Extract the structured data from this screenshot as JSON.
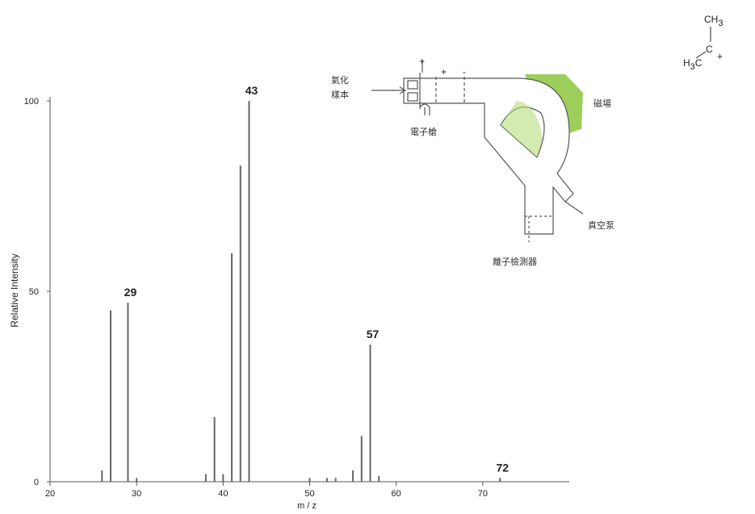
{
  "chart_data": {
    "type": "bar",
    "xlabel": "m / z",
    "ylabel": "Relative Intensity",
    "x": [
      26,
      27,
      29,
      30,
      38,
      39,
      40,
      41,
      42,
      43,
      50,
      52,
      53,
      55,
      56,
      57,
      58,
      72
    ],
    "values": [
      3,
      45,
      47,
      1,
      2,
      17,
      2,
      60,
      83,
      100,
      1,
      1,
      1,
      3,
      12,
      36,
      1.5,
      1
    ],
    "color": "#666666",
    "xlim": [
      20,
      80
    ],
    "xticks": [
      20,
      30,
      40,
      50,
      60,
      70
    ],
    "ylim": [
      0,
      100
    ],
    "yticks": [
      0,
      50,
      100
    ],
    "labeled_peaks": [
      29,
      43,
      57,
      72
    ]
  },
  "diagram": {
    "labels": [
      "氣化",
      "樣本",
      "電子槍",
      "磁場",
      "真空泵",
      "離子檢測器"
    ],
    "signs": [
      "+",
      "+",
      "-"
    ]
  },
  "molecule": {
    "top": [
      "CH",
      "3"
    ],
    "left": [
      "H",
      "3",
      "C"
    ],
    "center": "C",
    "charge": "+"
  }
}
